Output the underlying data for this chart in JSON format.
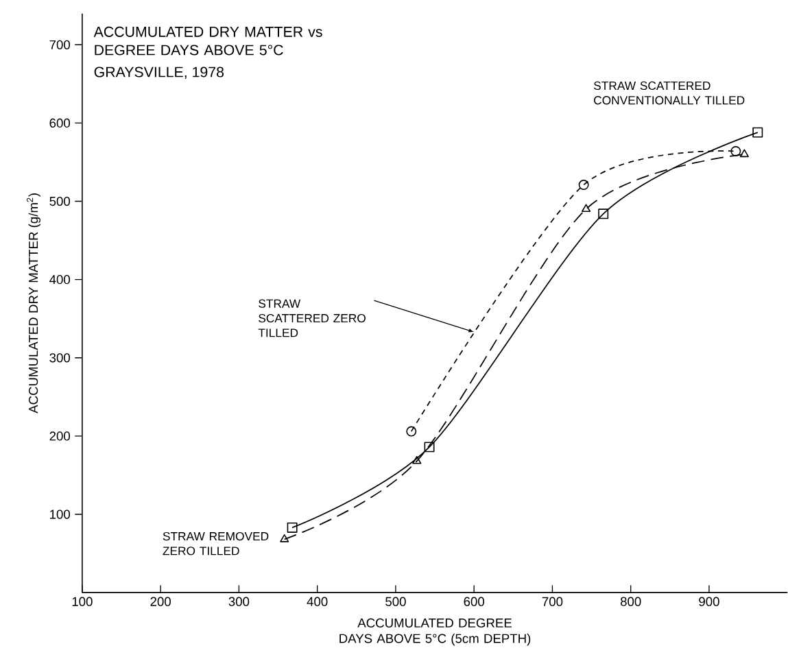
{
  "chart_data": {
    "type": "line",
    "title": "ACCUMULATED DRY MATTER vs DEGREE DAYS ABOVE 5°C",
    "subtitle": "GRAYSVILLE, 1978",
    "xlabel": "ACCUMULATED DEGREE DAYS ABOVE 5°C (5cm DEPTH)",
    "ylabel": "ACCUMULATED DRY MATTER (g/m$^{2}$)",
    "xlim": [
      100,
      1000
    ],
    "ylim": [
      0,
      740
    ],
    "xticks": [
      100,
      200,
      300,
      400,
      500,
      600,
      700,
      800,
      900
    ],
    "yticks": [
      100,
      200,
      300,
      400,
      500,
      600,
      700
    ],
    "series": [
      {
        "name": "STRAW SCATTERED CONVENTIONALLY TILLED",
        "color": "#000000",
        "marker": "square",
        "line_style": "solid",
        "x": [
          368,
          543,
          765,
          962
        ],
        "values": [
          83,
          186,
          484,
          588
        ]
      },
      {
        "name": "STRAW SCATTERED ZERO TILLED",
        "color": "#000000",
        "marker": "circle",
        "line_style": "dotted",
        "x": [
          520,
          740,
          934
        ],
        "values": [
          206,
          521,
          564
        ]
      },
      {
        "name": "STRAW REMOVED ZERO TILLED",
        "color": "#000000",
        "marker": "triangle",
        "line_style": "dashed",
        "x": [
          358,
          527,
          743,
          945
        ],
        "values": [
          68,
          168,
          490,
          560
        ]
      }
    ]
  }
}
